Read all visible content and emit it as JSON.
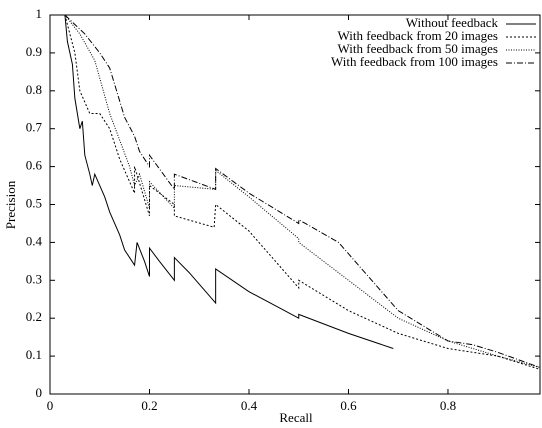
{
  "chart_data": {
    "type": "line",
    "xlabel": "Recall",
    "ylabel": "Precision",
    "xlim": [
      0,
      0.985
    ],
    "ylim": [
      0,
      1
    ],
    "xticks": [
      0,
      0.2,
      0.4,
      0.6,
      0.8
    ],
    "yticks": [
      0,
      0.1,
      0.2,
      0.3,
      0.4,
      0.5,
      0.6,
      0.7,
      0.8,
      0.9,
      1
    ],
    "legend": "top-right",
    "series": [
      {
        "name": "Without feedback",
        "color": "#000000",
        "style": "solid",
        "x": [
          0.03,
          0.035,
          0.045,
          0.05,
          0.06,
          0.065,
          0.07,
          0.08,
          0.085,
          0.09,
          0.1,
          0.11,
          0.12,
          0.14,
          0.15,
          0.16,
          0.17,
          0.175,
          0.19,
          0.2,
          0.2,
          0.22,
          0.25,
          0.25,
          0.28,
          0.333,
          0.333,
          0.4,
          0.5,
          0.5,
          0.6,
          0.69
        ],
        "values": [
          1.0,
          0.93,
          0.87,
          0.78,
          0.7,
          0.72,
          0.63,
          0.58,
          0.55,
          0.58,
          0.55,
          0.52,
          0.48,
          0.42,
          0.38,
          0.36,
          0.34,
          0.4,
          0.35,
          0.31,
          0.385,
          0.35,
          0.3,
          0.36,
          0.32,
          0.24,
          0.33,
          0.27,
          0.2,
          0.21,
          0.16,
          0.12
        ]
      },
      {
        "name": "With feedback from 20 images",
        "color": "#000000",
        "style": "dotted",
        "x": [
          0.03,
          0.05,
          0.06,
          0.08,
          0.1,
          0.12,
          0.14,
          0.16,
          0.17,
          0.17,
          0.2,
          0.2,
          0.25,
          0.25,
          0.33,
          0.333,
          0.4,
          0.5,
          0.5,
          0.6,
          0.7,
          0.8,
          0.9,
          0.985
        ],
        "values": [
          1.0,
          0.9,
          0.8,
          0.74,
          0.74,
          0.7,
          0.62,
          0.56,
          0.53,
          0.6,
          0.47,
          0.55,
          0.5,
          0.47,
          0.44,
          0.5,
          0.43,
          0.28,
          0.3,
          0.22,
          0.16,
          0.12,
          0.1,
          0.065
        ]
      },
      {
        "name": "With feedback from 50 images",
        "color": "#000000",
        "style": "fine-dotted",
        "x": [
          0.03,
          0.06,
          0.09,
          0.12,
          0.16,
          0.17,
          0.18,
          0.2,
          0.2,
          0.25,
          0.25,
          0.333,
          0.333,
          0.4,
          0.5,
          0.5,
          0.6,
          0.7,
          0.8,
          0.9,
          0.985
        ],
        "values": [
          1.0,
          0.95,
          0.88,
          0.74,
          0.6,
          0.55,
          0.58,
          0.49,
          0.56,
          0.49,
          0.55,
          0.54,
          0.59,
          0.52,
          0.41,
          0.4,
          0.3,
          0.2,
          0.14,
          0.1,
          0.07
        ]
      },
      {
        "name": "With feedback from 100 images",
        "color": "#000000",
        "style": "dash-dot",
        "x": [
          0.03,
          0.07,
          0.1,
          0.12,
          0.15,
          0.17,
          0.18,
          0.2,
          0.2,
          0.25,
          0.25,
          0.333,
          0.333,
          0.4,
          0.5,
          0.5,
          0.58,
          0.7,
          0.8,
          0.85,
          0.9,
          0.985
        ],
        "values": [
          1.0,
          0.95,
          0.9,
          0.86,
          0.73,
          0.68,
          0.64,
          0.6,
          0.63,
          0.54,
          0.58,
          0.54,
          0.595,
          0.53,
          0.45,
          0.46,
          0.4,
          0.22,
          0.14,
          0.13,
          0.11,
          0.07
        ]
      }
    ]
  }
}
